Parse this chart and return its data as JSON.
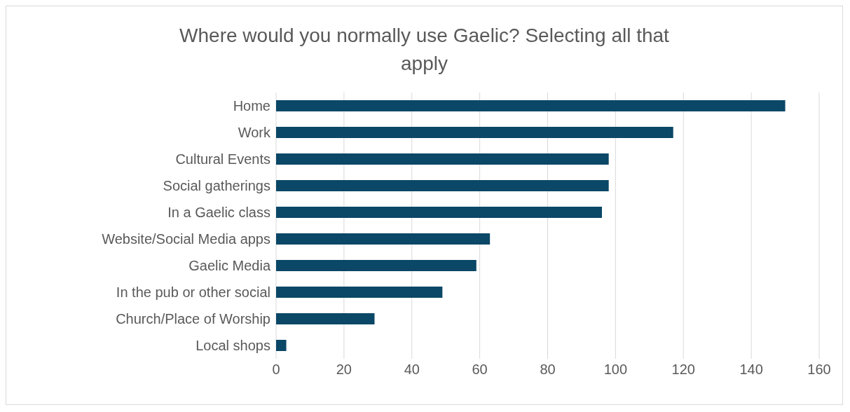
{
  "chart_data": {
    "type": "bar",
    "orientation": "horizontal",
    "title": "Where would you normally use Gaelic? Selecting all that apply",
    "categories": [
      "Home",
      "Work",
      "Cultural Events",
      "Social gatherings",
      "In a Gaelic class",
      "Website/Social Media apps",
      "Gaelic Media",
      "In the pub or other social",
      "Church/Place of Worship",
      "Local shops"
    ],
    "values": [
      150,
      117,
      98,
      98,
      96,
      63,
      59,
      49,
      29,
      3
    ],
    "color": "#0b4766",
    "xlim": [
      0,
      160
    ],
    "xticks": [
      0,
      20,
      40,
      60,
      80,
      100,
      120,
      140,
      160
    ],
    "grid": "x"
  }
}
